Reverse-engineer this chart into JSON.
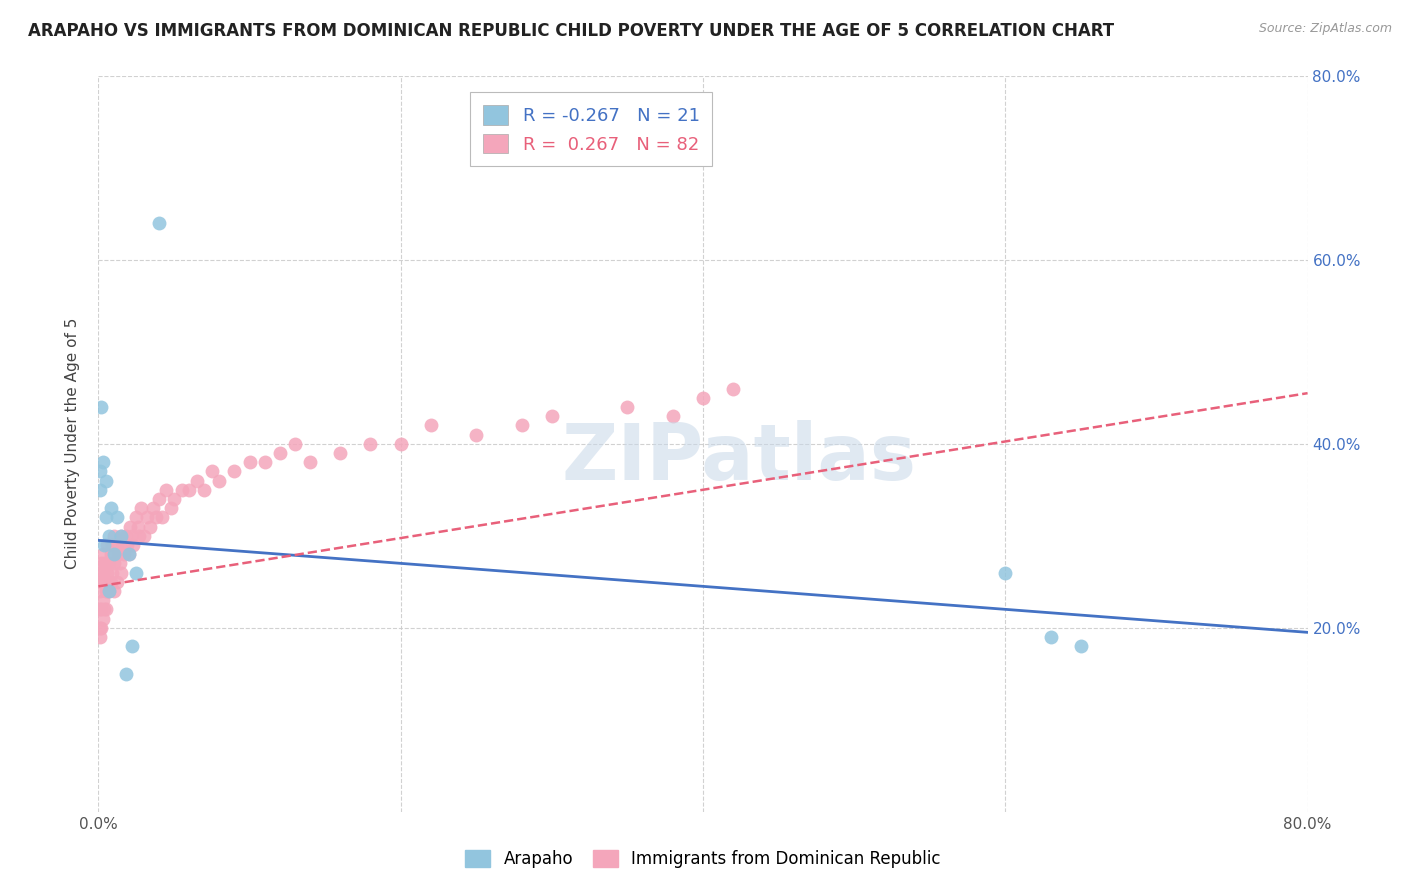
{
  "title": "ARAPAHO VS IMMIGRANTS FROM DOMINICAN REPUBLIC CHILD POVERTY UNDER THE AGE OF 5 CORRELATION CHART",
  "source": "Source: ZipAtlas.com",
  "ylabel": "Child Poverty Under the Age of 5",
  "xlim": [
    0,
    0.8
  ],
  "ylim": [
    0,
    0.8
  ],
  "xticks": [
    0.0,
    0.2,
    0.4,
    0.6,
    0.8
  ],
  "yticks": [
    0.2,
    0.4,
    0.6,
    0.8
  ],
  "xticklabels": [
    "0.0%",
    "",
    "",
    "",
    "80.0%"
  ],
  "yticklabels_right": [
    "20.0%",
    "40.0%",
    "60.0%",
    "80.0%"
  ],
  "legend_r_blue": "-0.267",
  "legend_n_blue": "21",
  "legend_r_pink": " 0.267",
  "legend_n_pink": "82",
  "blue_color": "#92C5DE",
  "pink_color": "#F4A6BB",
  "blue_line_color": "#4472C4",
  "pink_line_color": "#E8607A",
  "background_color": "#ffffff",
  "grid_color": "#cccccc",
  "watermark": "ZIPatlas",
  "arapaho_x": [
    0.001,
    0.001,
    0.002,
    0.003,
    0.004,
    0.005,
    0.005,
    0.007,
    0.007,
    0.008,
    0.01,
    0.012,
    0.015,
    0.018,
    0.02,
    0.022,
    0.025,
    0.04,
    0.6,
    0.63,
    0.65
  ],
  "arapaho_y": [
    0.35,
    0.37,
    0.44,
    0.38,
    0.29,
    0.32,
    0.36,
    0.24,
    0.3,
    0.33,
    0.28,
    0.32,
    0.3,
    0.15,
    0.28,
    0.18,
    0.26,
    0.64,
    0.26,
    0.19,
    0.18
  ],
  "dominican_x": [
    0.001,
    0.001,
    0.001,
    0.001,
    0.001,
    0.002,
    0.002,
    0.002,
    0.002,
    0.003,
    0.003,
    0.003,
    0.003,
    0.004,
    0.004,
    0.004,
    0.005,
    0.005,
    0.005,
    0.006,
    0.006,
    0.006,
    0.007,
    0.007,
    0.008,
    0.008,
    0.009,
    0.009,
    0.01,
    0.01,
    0.01,
    0.012,
    0.012,
    0.013,
    0.014,
    0.015,
    0.015,
    0.016,
    0.017,
    0.018,
    0.019,
    0.02,
    0.021,
    0.022,
    0.023,
    0.025,
    0.026,
    0.027,
    0.028,
    0.03,
    0.032,
    0.034,
    0.036,
    0.038,
    0.04,
    0.042,
    0.045,
    0.048,
    0.05,
    0.055,
    0.06,
    0.065,
    0.07,
    0.075,
    0.08,
    0.09,
    0.1,
    0.11,
    0.12,
    0.13,
    0.14,
    0.16,
    0.18,
    0.2,
    0.22,
    0.25,
    0.28,
    0.3,
    0.35,
    0.38,
    0.4,
    0.42
  ],
  "dominican_y": [
    0.19,
    0.2,
    0.22,
    0.24,
    0.26,
    0.2,
    0.22,
    0.25,
    0.27,
    0.21,
    0.23,
    0.26,
    0.28,
    0.22,
    0.25,
    0.27,
    0.22,
    0.24,
    0.27,
    0.24,
    0.26,
    0.29,
    0.24,
    0.27,
    0.25,
    0.28,
    0.26,
    0.29,
    0.24,
    0.27,
    0.3,
    0.25,
    0.29,
    0.28,
    0.27,
    0.26,
    0.3,
    0.29,
    0.28,
    0.3,
    0.29,
    0.28,
    0.31,
    0.3,
    0.29,
    0.32,
    0.31,
    0.3,
    0.33,
    0.3,
    0.32,
    0.31,
    0.33,
    0.32,
    0.34,
    0.32,
    0.35,
    0.33,
    0.34,
    0.35,
    0.35,
    0.36,
    0.35,
    0.37,
    0.36,
    0.37,
    0.38,
    0.38,
    0.39,
    0.4,
    0.38,
    0.39,
    0.4,
    0.4,
    0.42,
    0.41,
    0.42,
    0.43,
    0.44,
    0.43,
    0.45,
    0.46
  ]
}
